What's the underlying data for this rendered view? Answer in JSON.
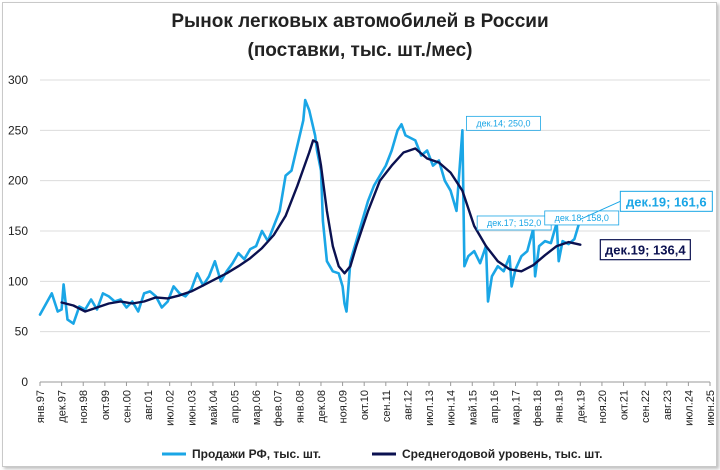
{
  "chart_data": {
    "type": "line",
    "title": [
      "Рынок легковых автомобилей в России",
      "(поставки, тыс. шт./мес)"
    ],
    "xlabel": "",
    "ylabel": "",
    "ylim": [
      0,
      300
    ],
    "yticks": [
      "0",
      "50",
      "100",
      "150",
      "200",
      "250",
      "300"
    ],
    "grid": "horizontal",
    "legend_position": "bottom",
    "x_start": "янв.97",
    "x_end": "июн.25",
    "xticks": [
      "янв.97",
      "дек.97",
      "ноя.98",
      "окт.99",
      "сен.00",
      "авг.01",
      "июл.02",
      "июн.03",
      "май.04",
      "апр.05",
      "мар.06",
      "фев.07",
      "янв.08",
      "дек.08",
      "ноя.09",
      "окт.10",
      "сен.11",
      "авг.12",
      "июл.13",
      "июн.14",
      "май.15",
      "апр.16",
      "мар.17",
      "фев.18",
      "янв.19",
      "дек.19",
      "ноя.20",
      "окт.21",
      "сен.22",
      "авг.23",
      "июл.24",
      "июн.25"
    ],
    "series": [
      {
        "name": "Продажи РФ, тыс. шт.",
        "color": "#1aa6e6",
        "points": [
          [
            "янв.97",
            67
          ],
          [
            "июл.97",
            88
          ],
          [
            "окт.97",
            70
          ],
          [
            "дек.97",
            72
          ],
          [
            "янв.98",
            97
          ],
          [
            "мар.98",
            62
          ],
          [
            "июн.98",
            58
          ],
          [
            "сен.98",
            75
          ],
          [
            "дек.98",
            72
          ],
          [
            "мар.99",
            82
          ],
          [
            "июн.99",
            72
          ],
          [
            "сен.99",
            88
          ],
          [
            "дек.99",
            85
          ],
          [
            "мар.00",
            80
          ],
          [
            "июн.00",
            82
          ],
          [
            "сен.00",
            74
          ],
          [
            "дек.00",
            80
          ],
          [
            "мар.01",
            70
          ],
          [
            "июн.01",
            88
          ],
          [
            "сен.01",
            90
          ],
          [
            "дек.01",
            85
          ],
          [
            "мар.02",
            74
          ],
          [
            "июн.02",
            80
          ],
          [
            "сен.02",
            95
          ],
          [
            "дек.02",
            88
          ],
          [
            "мар.03",
            85
          ],
          [
            "июн.03",
            92
          ],
          [
            "сен.03",
            108
          ],
          [
            "дек.03",
            96
          ],
          [
            "мар.04",
            105
          ],
          [
            "июн.04",
            120
          ],
          [
            "сен.04",
            100
          ],
          [
            "дек.04",
            110
          ],
          [
            "мар.05",
            118
          ],
          [
            "июн.05",
            128
          ],
          [
            "сен.05",
            122
          ],
          [
            "дек.05",
            132
          ],
          [
            "мар.06",
            135
          ],
          [
            "июн.06",
            150
          ],
          [
            "сен.06",
            140
          ],
          [
            "дек.06",
            155
          ],
          [
            "мар.07",
            170
          ],
          [
            "июн.07",
            205
          ],
          [
            "сен.07",
            210
          ],
          [
            "дек.07",
            235
          ],
          [
            "мар.08",
            260
          ],
          [
            "апр.08",
            280
          ],
          [
            "июн.08",
            270
          ],
          [
            "сен.08",
            245
          ],
          [
            "окт.08",
            230
          ],
          [
            "дек.08",
            210
          ],
          [
            "янв.09",
            160
          ],
          [
            "мар.09",
            120
          ],
          [
            "июн.09",
            110
          ],
          [
            "сен.09",
            108
          ],
          [
            "ноя.09",
            95
          ],
          [
            "дек.09",
            78
          ],
          [
            "янв.10",
            70
          ],
          [
            "мар.10",
            120
          ],
          [
            "июн.10",
            140
          ],
          [
            "сен.10",
            160
          ],
          [
            "дек.10",
            180
          ],
          [
            "мар.11",
            195
          ],
          [
            "июн.11",
            205
          ],
          [
            "сен.11",
            215
          ],
          [
            "дек.11",
            230
          ],
          [
            "мар.12",
            250
          ],
          [
            "май.12",
            256
          ],
          [
            "июл.12",
            245
          ],
          [
            "дек.12",
            240
          ],
          [
            "мар.13",
            225
          ],
          [
            "июн.13",
            230
          ],
          [
            "сен.13",
            215
          ],
          [
            "дек.13",
            220
          ],
          [
            "мар.14",
            200
          ],
          [
            "июн.14",
            190
          ],
          [
            "сен.14",
            170
          ],
          [
            "дек.14",
            250
          ],
          [
            "янв.15",
            115
          ],
          [
            "мар.15",
            125
          ],
          [
            "июн.15",
            130
          ],
          [
            "сен.15",
            118
          ],
          [
            "дек.15",
            135
          ],
          [
            "янв.16",
            80
          ],
          [
            "мар.16",
            105
          ],
          [
            "июн.16",
            115
          ],
          [
            "сен.16",
            110
          ],
          [
            "дек.16",
            125
          ],
          [
            "янв.17",
            95
          ],
          [
            "мар.17",
            112
          ],
          [
            "июн.17",
            125
          ],
          [
            "сен.17",
            130
          ],
          [
            "дек.17",
            152
          ],
          [
            "янв.18",
            105
          ],
          [
            "мар.18",
            135
          ],
          [
            "июн.18",
            140
          ],
          [
            "сен.18",
            138
          ],
          [
            "дек.18",
            158
          ],
          [
            "янв.19",
            120
          ],
          [
            "мар.19",
            140
          ],
          [
            "июн.19",
            137
          ],
          [
            "сен.19",
            142
          ],
          [
            "дек.19",
            161.6
          ]
        ]
      },
      {
        "name": "Среднегодовой уровень, тыс. шт.",
        "color": "#0b1150",
        "points": [
          [
            "дек.97",
            79
          ],
          [
            "июн.98",
            76
          ],
          [
            "дек.98",
            70
          ],
          [
            "июн.99",
            74
          ],
          [
            "дек.99",
            78
          ],
          [
            "июн.00",
            80
          ],
          [
            "дек.00",
            78
          ],
          [
            "июн.01",
            80
          ],
          [
            "дек.01",
            84
          ],
          [
            "июн.02",
            83
          ],
          [
            "дек.02",
            86
          ],
          [
            "июн.03",
            90
          ],
          [
            "дек.03",
            96
          ],
          [
            "июн.04",
            102
          ],
          [
            "дек.04",
            108
          ],
          [
            "июн.05",
            115
          ],
          [
            "дек.05",
            123
          ],
          [
            "июн.06",
            133
          ],
          [
            "дек.06",
            146
          ],
          [
            "июн.07",
            165
          ],
          [
            "дек.07",
            195
          ],
          [
            "июн.08",
            228
          ],
          [
            "авг.08",
            240
          ],
          [
            "окт.08",
            238
          ],
          [
            "дек.08",
            215
          ],
          [
            "мар.09",
            170
          ],
          [
            "июн.09",
            135
          ],
          [
            "сен.09",
            115
          ],
          [
            "дек.09",
            108
          ],
          [
            "мар.10",
            115
          ],
          [
            "июн.10",
            135
          ],
          [
            "дек.10",
            170
          ],
          [
            "июн.11",
            200
          ],
          [
            "дек.11",
            215
          ],
          [
            "июн.12",
            228
          ],
          [
            "дек.12",
            232
          ],
          [
            "июн.13",
            222
          ],
          [
            "дек.13",
            218
          ],
          [
            "июн.14",
            208
          ],
          [
            "дек.14",
            190
          ],
          [
            "июн.15",
            155
          ],
          [
            "дек.15",
            135
          ],
          [
            "июн.16",
            120
          ],
          [
            "дек.16",
            112
          ],
          [
            "июн.17",
            110
          ],
          [
            "дек.17",
            116
          ],
          [
            "июн.18",
            126
          ],
          [
            "дек.18",
            135
          ],
          [
            "июн.19",
            139
          ],
          [
            "дек.19",
            136.4
          ]
        ]
      }
    ],
    "annotations": [
      {
        "text": "дек.14; 250,0",
        "x": "дек.14",
        "y": 250,
        "style": "small"
      },
      {
        "text": "дек.17; 152,0",
        "x": "дек.17",
        "y": 152,
        "style": "small"
      },
      {
        "text": "дек.18; 158,0",
        "x": "дек.18",
        "y": 158,
        "style": "small"
      },
      {
        "text": "дек.19; 161,6",
        "x": "дек.19",
        "y": 161.6,
        "style": "big"
      },
      {
        "text": "дек.19;  136,4",
        "x": "дек.19",
        "y": 136.4,
        "style": "avg"
      }
    ]
  }
}
